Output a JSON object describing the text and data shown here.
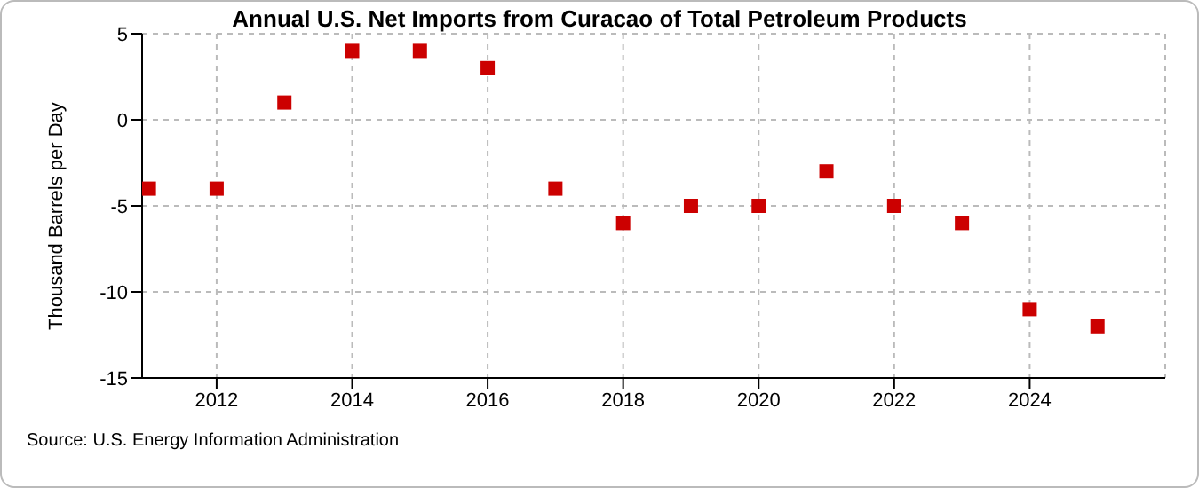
{
  "chart_data": {
    "type": "scatter",
    "title": "Annual U.S. Net Imports from Curacao of Total Petroleum Products",
    "ylabel": "Thousand Barrels per Day",
    "x": [
      2011,
      2012,
      2013,
      2014,
      2015,
      2016,
      2017,
      2018,
      2019,
      2020,
      2021,
      2022,
      2023,
      2024,
      2025
    ],
    "series": [
      {
        "color": "#cc0000",
        "values": [
          -4,
          -4,
          1,
          4,
          4,
          3,
          -4,
          -6,
          -5,
          -5,
          -3,
          -5,
          -6,
          -11,
          -12
        ]
      }
    ],
    "xlim": [
      2010.9,
      2026
    ],
    "xticks": [
      2012,
      2014,
      2016,
      2018,
      2020,
      2022,
      2024
    ],
    "ylim": [
      -15,
      5
    ],
    "yticks": [
      -15,
      -10,
      -5,
      0,
      5
    ],
    "grid": true,
    "marker": "square",
    "legend": false,
    "annotations": [
      "Source: U.S. Energy Information Administration"
    ]
  }
}
